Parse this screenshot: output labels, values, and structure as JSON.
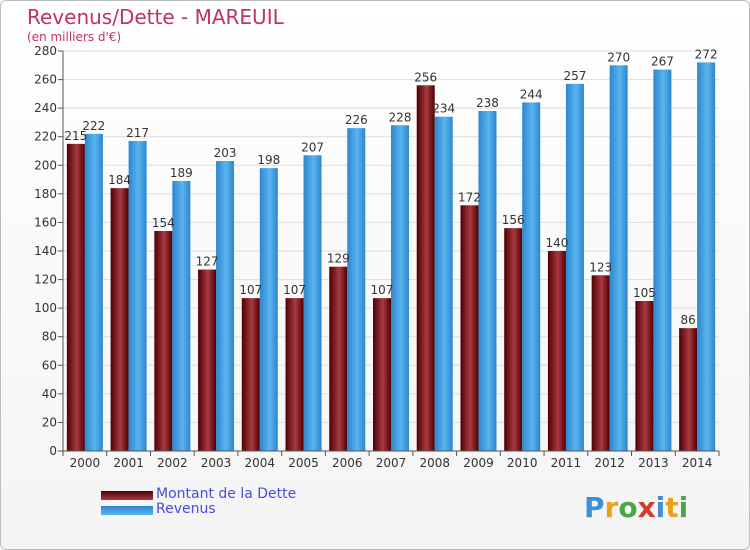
{
  "header": {
    "title": "Revenus/Dette - MAREUIL",
    "subtitle": "(en milliers d'€)"
  },
  "legend": {
    "items": [
      {
        "label": "Montant de la Dette",
        "color": "#7a0d16"
      },
      {
        "label": "Revenus",
        "color": "#3e9fe3"
      }
    ]
  },
  "logo": {
    "text": "Proxiti"
  },
  "colors": {
    "debt_dark": "#4e0005",
    "debt_light": "#a83a3f",
    "rev_dark": "#2d86cf",
    "rev_light": "#5ab4ee",
    "grid": "#dcdcdc"
  },
  "chart_data": {
    "type": "bar",
    "title": "Revenus/Dette - MAREUIL",
    "subtitle": "(en milliers d'€)",
    "categories": [
      "2000",
      "2001",
      "2002",
      "2003",
      "2004",
      "2005",
      "2006",
      "2007",
      "2008",
      "2009",
      "2010",
      "2011",
      "2012",
      "2013",
      "2014"
    ],
    "series": [
      {
        "name": "Montant de la Dette",
        "values": [
          215,
          184,
          154,
          127,
          107,
          107,
          129,
          107,
          256,
          172,
          156,
          140,
          123,
          105,
          86
        ]
      },
      {
        "name": "Revenus",
        "values": [
          222,
          217,
          189,
          203,
          198,
          207,
          226,
          228,
          234,
          238,
          244,
          257,
          270,
          267,
          272
        ]
      }
    ],
    "ylim": [
      0,
      280
    ],
    "yticks": [
      0,
      20,
      40,
      60,
      80,
      100,
      120,
      140,
      160,
      180,
      200,
      220,
      240,
      260,
      280
    ],
    "grid": true,
    "legend_position": "bottom-left"
  }
}
